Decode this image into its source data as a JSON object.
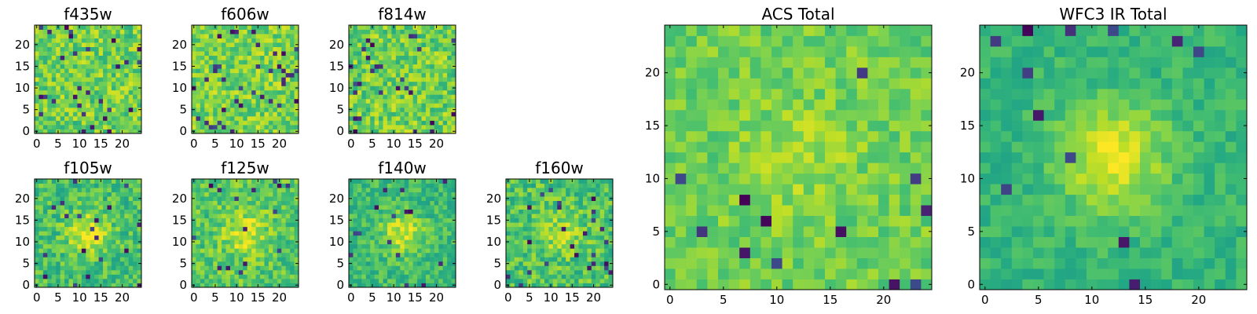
{
  "chart_data": [
    {
      "type": "heatmap",
      "title": "f435w",
      "colormap": "viridis",
      "grid": false,
      "seed": 11,
      "xlim": [
        -0.5,
        24.5
      ],
      "ylim": [
        -0.5,
        24.5
      ],
      "pixel_values_shown": "yes",
      "xticks": [
        0,
        5,
        10,
        15,
        20
      ],
      "xtick_labels": [
        "0",
        "5",
        "10",
        "15",
        "20"
      ],
      "yticks": [
        0,
        5,
        10,
        15,
        20
      ],
      "ytick_labels": [
        "0",
        "5",
        "10",
        "15",
        "20"
      ]
    },
    {
      "type": "heatmap",
      "title": "f606w",
      "colormap": "viridis",
      "grid": false,
      "seed": 23,
      "xlim": [
        -0.5,
        24.5
      ],
      "ylim": [
        -0.5,
        24.5
      ],
      "xticks": [
        0,
        5,
        10,
        15,
        20
      ],
      "xtick_labels": [
        "0",
        "5",
        "10",
        "15",
        "20"
      ],
      "yticks": [
        0,
        5,
        10,
        15,
        20
      ],
      "ytick_labels": [
        "0",
        "5",
        "10",
        "15",
        "20"
      ]
    },
    {
      "type": "heatmap",
      "title": "f814w",
      "colormap": "viridis",
      "grid": false,
      "seed": 37,
      "xlim": [
        -0.5,
        24.5
      ],
      "ylim": [
        -0.5,
        24.5
      ],
      "xticks": [
        0,
        5,
        10,
        15,
        20
      ],
      "xtick_labels": [
        "0",
        "5",
        "10",
        "15",
        "20"
      ],
      "yticks": [
        0,
        5,
        10,
        15,
        20
      ],
      "ytick_labels": [
        "0",
        "5",
        "10",
        "15",
        "20"
      ]
    },
    {
      "type": "heatmap",
      "title": "f105w",
      "colormap": "viridis",
      "grid": false,
      "seed": 41,
      "xlim": [
        -0.5,
        24.5
      ],
      "ylim": [
        -0.5,
        24.5
      ],
      "xticks": [
        0,
        5,
        10,
        15,
        20
      ],
      "xtick_labels": [
        "0",
        "5",
        "10",
        "15",
        "20"
      ],
      "yticks": [
        0,
        5,
        10,
        15,
        20
      ],
      "ytick_labels": [
        "0",
        "5",
        "10",
        "15",
        "20"
      ]
    },
    {
      "type": "heatmap",
      "title": "f125w",
      "colormap": "viridis",
      "grid": false,
      "seed": 53,
      "xlim": [
        -0.5,
        24.5
      ],
      "ylim": [
        -0.5,
        24.5
      ],
      "xticks": [
        0,
        5,
        10,
        15,
        20
      ],
      "xtick_labels": [
        "0",
        "5",
        "10",
        "15",
        "20"
      ],
      "yticks": [
        0,
        5,
        10,
        15,
        20
      ],
      "ytick_labels": [
        "0",
        "5",
        "10",
        "15",
        "20"
      ]
    },
    {
      "type": "heatmap",
      "title": "f140w",
      "colormap": "viridis",
      "grid": false,
      "seed": 67,
      "xlim": [
        -0.5,
        24.5
      ],
      "ylim": [
        -0.5,
        24.5
      ],
      "xticks": [
        0,
        5,
        10,
        15,
        20
      ],
      "xtick_labels": [
        "0",
        "5",
        "10",
        "15",
        "20"
      ],
      "yticks": [
        0,
        5,
        10,
        15,
        20
      ],
      "ytick_labels": [
        "0",
        "5",
        "10",
        "15",
        "20"
      ]
    },
    {
      "type": "heatmap",
      "title": "f160w",
      "colormap": "viridis",
      "grid": false,
      "seed": 79,
      "xlim": [
        -0.5,
        24.5
      ],
      "ylim": [
        -0.5,
        24.5
      ],
      "xticks": [
        0,
        5,
        10,
        15,
        20
      ],
      "xtick_labels": [
        "0",
        "5",
        "10",
        "15",
        "20"
      ],
      "yticks": [
        0,
        5,
        10,
        15,
        20
      ],
      "ytick_labels": [
        "0",
        "5",
        "10",
        "15",
        "20"
      ]
    },
    {
      "type": "heatmap",
      "title": "ACS Total",
      "colormap": "viridis",
      "grid": false,
      "seed": 83,
      "xlim": [
        -0.5,
        24.5
      ],
      "ylim": [
        -0.5,
        24.5
      ],
      "xticks": [
        0,
        5,
        10,
        15,
        20
      ],
      "xtick_labels": [
        "0",
        "5",
        "10",
        "15",
        "20"
      ],
      "yticks": [
        0,
        5,
        10,
        15,
        20
      ],
      "ytick_labels": [
        "0",
        "5",
        "10",
        "15",
        "20"
      ]
    },
    {
      "type": "heatmap",
      "title": "WFC3 IR Total",
      "colormap": "viridis",
      "grid": false,
      "seed": 97,
      "xlim": [
        -0.5,
        24.5
      ],
      "ylim": [
        -0.5,
        24.5
      ],
      "xticks": [
        0,
        5,
        10,
        15,
        20
      ],
      "xtick_labels": [
        "0",
        "5",
        "10",
        "15",
        "20"
      ],
      "yticks": [
        0,
        5,
        10,
        15,
        20
      ],
      "ytick_labels": [
        "0",
        "5",
        "10",
        "15",
        "20"
      ]
    }
  ]
}
